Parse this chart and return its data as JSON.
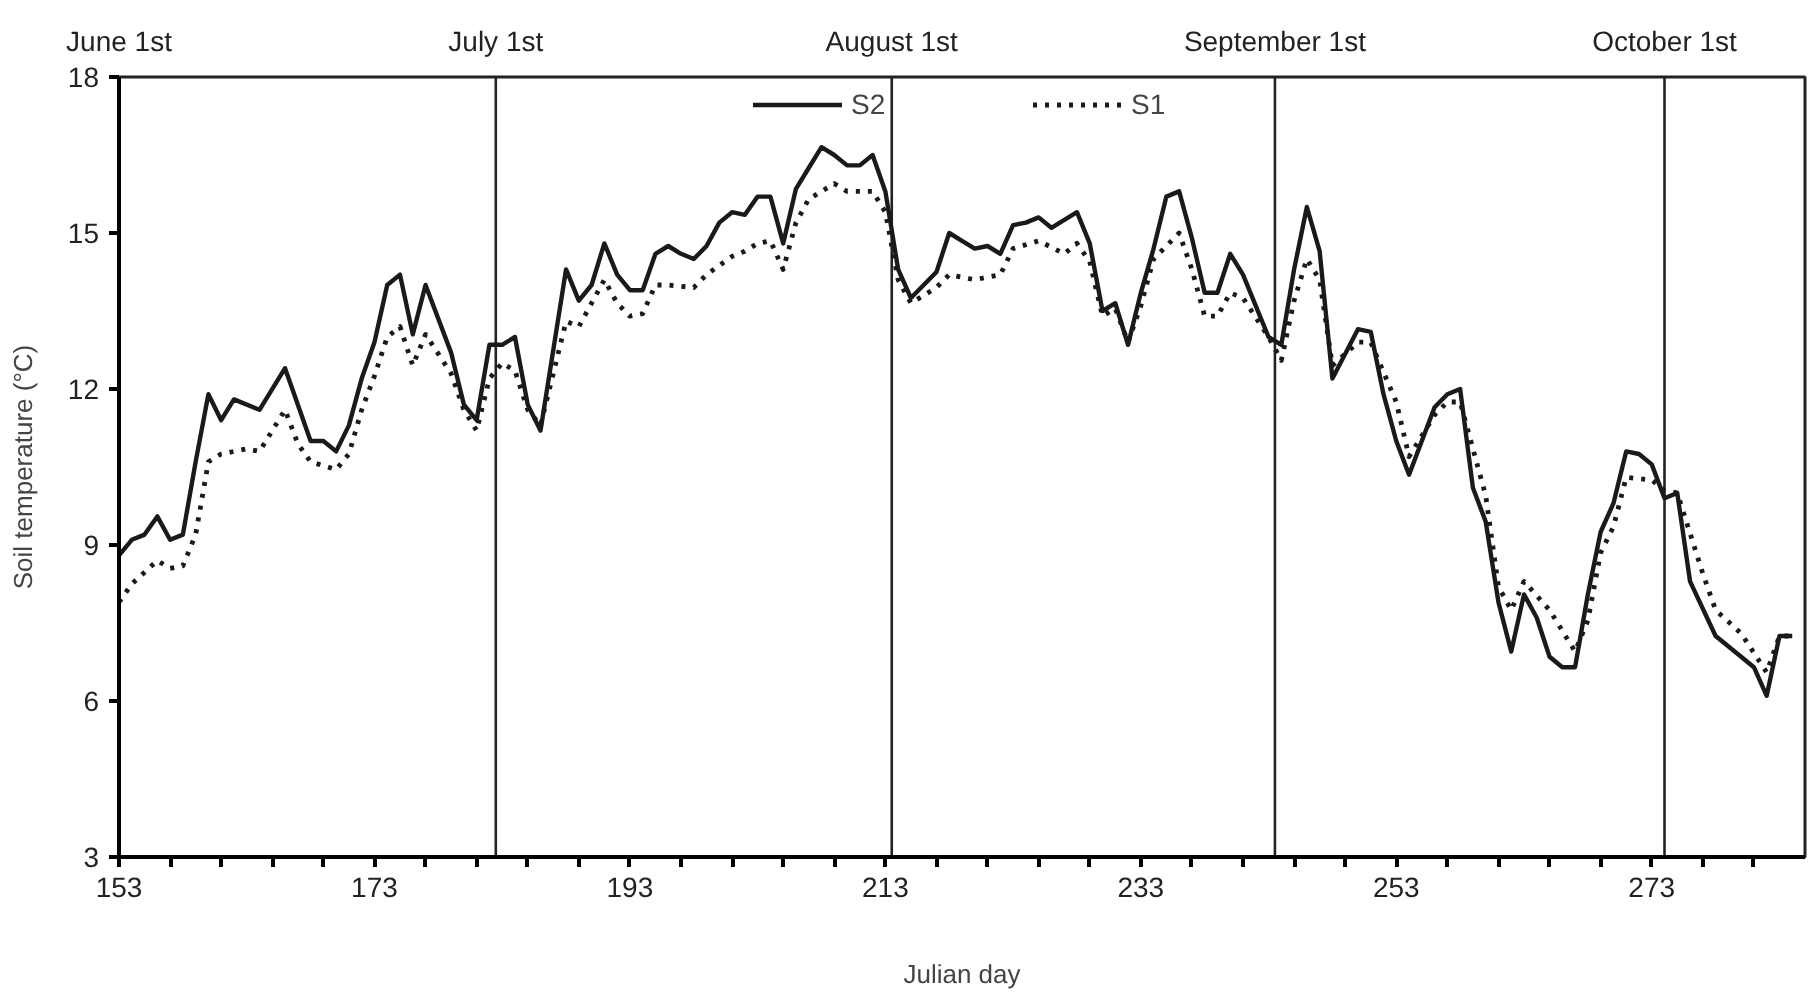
{
  "chart_data": {
    "type": "line",
    "xlabel": "Julian day",
    "ylabel": "Soil temperature (°C)",
    "xlim": [
      153,
      285
    ],
    "ylim": [
      3,
      18
    ],
    "xticks": [
      153,
      {
        "value": 157,
        "label": null
      },
      {
        "value": 161,
        "label": null
      },
      {
        "value": 165,
        "label": null
      },
      {
        "value": 169,
        "label": null
      },
      173,
      {
        "value": 177,
        "label": null
      },
      {
        "value": 181,
        "label": null
      },
      {
        "value": 185,
        "label": null
      },
      {
        "value": 189,
        "label": null
      },
      193,
      {
        "value": 197,
        "label": null
      },
      {
        "value": 201,
        "label": null
      },
      {
        "value": 205,
        "label": null
      },
      {
        "value": 209,
        "label": null
      },
      213,
      {
        "value": 217,
        "label": null
      },
      {
        "value": 221,
        "label": null
      },
      {
        "value": 225,
        "label": null
      },
      {
        "value": 229,
        "label": null
      },
      233,
      {
        "value": 237,
        "label": null
      },
      {
        "value": 241,
        "label": null
      },
      {
        "value": 245,
        "label": null
      },
      {
        "value": 249,
        "label": null
      },
      253,
      {
        "value": 257,
        "label": null
      },
      {
        "value": 261,
        "label": null
      },
      {
        "value": 265,
        "label": null
      },
      {
        "value": 269,
        "label": null
      },
      273,
      {
        "value": 277,
        "label": null
      },
      {
        "value": 281,
        "label": null
      }
    ],
    "yticks": [
      3,
      6,
      9,
      12,
      15,
      18
    ],
    "annotations": [
      "June 1st"
    ],
    "grid": false,
    "legend": "top",
    "marker": "none",
    "ref_lines": [
      {
        "axis": "x",
        "value": 182.5,
        "label": "July 1st"
      },
      {
        "axis": "x",
        "value": 213.5,
        "label": "August 1st"
      },
      {
        "axis": "x",
        "value": 243.5,
        "label": "September 1st"
      },
      {
        "axis": "x",
        "value": 274,
        "label": "October 1st"
      }
    ],
    "series": [
      {
        "name": "S2",
        "color": "#1a1a1a",
        "line_style": "solid",
        "x": [
          153,
          154,
          155,
          156,
          157,
          158,
          159,
          160,
          161,
          162,
          164,
          166,
          168,
          169,
          170,
          171,
          172,
          173,
          174,
          175,
          176,
          177,
          179,
          180,
          181,
          182,
          183,
          184,
          185,
          186,
          188,
          189,
          190,
          191,
          192,
          193,
          194,
          195,
          196,
          197,
          198,
          199,
          200,
          201,
          202,
          203,
          204,
          205,
          206,
          207,
          208,
          209,
          210,
          211,
          212,
          213,
          214,
          215,
          217,
          218,
          219,
          220,
          221,
          222,
          223,
          224,
          225,
          226,
          228,
          229,
          230,
          231,
          232,
          233,
          234,
          235,
          236,
          237,
          238,
          239,
          240,
          241,
          242,
          243,
          244,
          245,
          246,
          247,
          248,
          250,
          251,
          252,
          253,
          254,
          256,
          257,
          258,
          259,
          260,
          261,
          262,
          263,
          264,
          265,
          266,
          267,
          268,
          269,
          270,
          271,
          272,
          273,
          274,
          275,
          276,
          278,
          280,
          281,
          282,
          283,
          284
        ],
        "values": [
          8.8,
          9.1,
          9.2,
          9.55,
          9.1,
          9.2,
          10.6,
          11.9,
          11.4,
          11.8,
          11.6,
          12.4,
          11.0,
          11.0,
          10.8,
          11.3,
          12.2,
          12.9,
          14.0,
          14.2,
          13.05,
          14.0,
          12.7,
          11.7,
          11.4,
          12.85,
          12.85,
          13.0,
          11.7,
          11.2,
          14.3,
          13.7,
          14.0,
          14.8,
          14.2,
          13.9,
          13.9,
          14.6,
          14.75,
          14.6,
          14.5,
          14.75,
          15.2,
          15.4,
          15.35,
          15.7,
          15.7,
          14.8,
          15.85,
          16.25,
          16.65,
          16.5,
          16.3,
          16.3,
          16.5,
          15.8,
          14.3,
          13.75,
          14.25,
          15.0,
          14.85,
          14.7,
          14.75,
          14.6,
          15.15,
          15.2,
          15.3,
          15.1,
          15.4,
          14.8,
          13.5,
          13.65,
          12.85,
          13.85,
          14.7,
          15.7,
          15.8,
          14.9,
          13.85,
          13.85,
          14.6,
          14.2,
          13.6,
          13.0,
          12.85,
          14.3,
          15.5,
          14.65,
          12.2,
          13.15,
          13.1,
          11.9,
          11.0,
          10.35,
          11.65,
          11.9,
          12.0,
          10.1,
          9.45,
          7.9,
          6.95,
          8.05,
          7.6,
          6.85,
          6.65,
          6.65,
          8.05,
          9.25,
          9.8,
          10.8,
          10.75,
          10.55,
          9.9,
          10.0,
          8.3,
          7.25,
          6.85,
          6.65,
          6.1,
          7.25,
          7.25
        ]
      },
      {
        "name": "S1",
        "color": "#1a1a1a",
        "line_style": "dotted",
        "x": [
          153,
          154,
          156,
          157,
          158,
          159,
          160,
          161,
          163,
          164,
          166,
          167,
          168,
          170,
          171,
          172,
          173,
          174,
          175,
          176,
          177,
          179,
          180,
          181,
          182,
          183,
          184,
          185,
          186,
          188,
          189,
          190,
          191,
          192,
          193,
          194,
          195,
          196,
          198,
          199,
          201,
          202,
          203,
          204,
          205,
          206,
          207,
          209,
          210,
          212,
          213,
          214,
          215,
          217,
          218,
          220,
          222,
          223,
          225,
          227,
          228,
          229,
          230,
          231,
          232,
          233,
          234,
          236,
          237,
          238,
          239,
          240,
          241,
          243,
          244,
          245,
          246,
          247,
          248,
          250,
          251,
          253,
          254,
          256,
          257,
          258,
          260,
          261,
          262,
          263,
          265,
          267,
          268,
          269,
          270,
          271,
          273,
          274,
          275,
          277,
          278,
          280,
          282,
          283,
          284
        ],
        "values": [
          7.9,
          8.25,
          8.7,
          8.55,
          8.6,
          9.2,
          10.6,
          10.75,
          10.85,
          10.8,
          11.6,
          10.95,
          10.6,
          10.45,
          10.75,
          11.6,
          12.25,
          13.0,
          13.2,
          12.45,
          13.05,
          12.3,
          11.6,
          11.2,
          12.2,
          12.5,
          12.35,
          11.6,
          11.3,
          13.3,
          13.2,
          13.65,
          14.1,
          13.65,
          13.4,
          13.45,
          14.0,
          14.0,
          13.95,
          14.2,
          14.55,
          14.65,
          14.8,
          14.85,
          14.3,
          15.2,
          15.65,
          15.95,
          15.8,
          15.8,
          15.4,
          14.1,
          13.65,
          13.95,
          14.2,
          14.1,
          14.2,
          14.7,
          14.85,
          14.6,
          14.8,
          14.45,
          13.4,
          13.55,
          12.9,
          13.6,
          14.5,
          15.0,
          14.3,
          13.4,
          13.4,
          13.85,
          13.75,
          13.0,
          12.55,
          13.7,
          14.5,
          14.1,
          12.45,
          12.9,
          12.9,
          11.75,
          10.7,
          11.5,
          11.75,
          11.75,
          9.95,
          8.2,
          7.75,
          8.3,
          7.75,
          6.95,
          7.55,
          8.85,
          9.35,
          10.3,
          10.25,
          10.05,
          10.0,
          8.45,
          7.75,
          7.3,
          6.55,
          7.25,
          7.25
        ]
      }
    ]
  }
}
